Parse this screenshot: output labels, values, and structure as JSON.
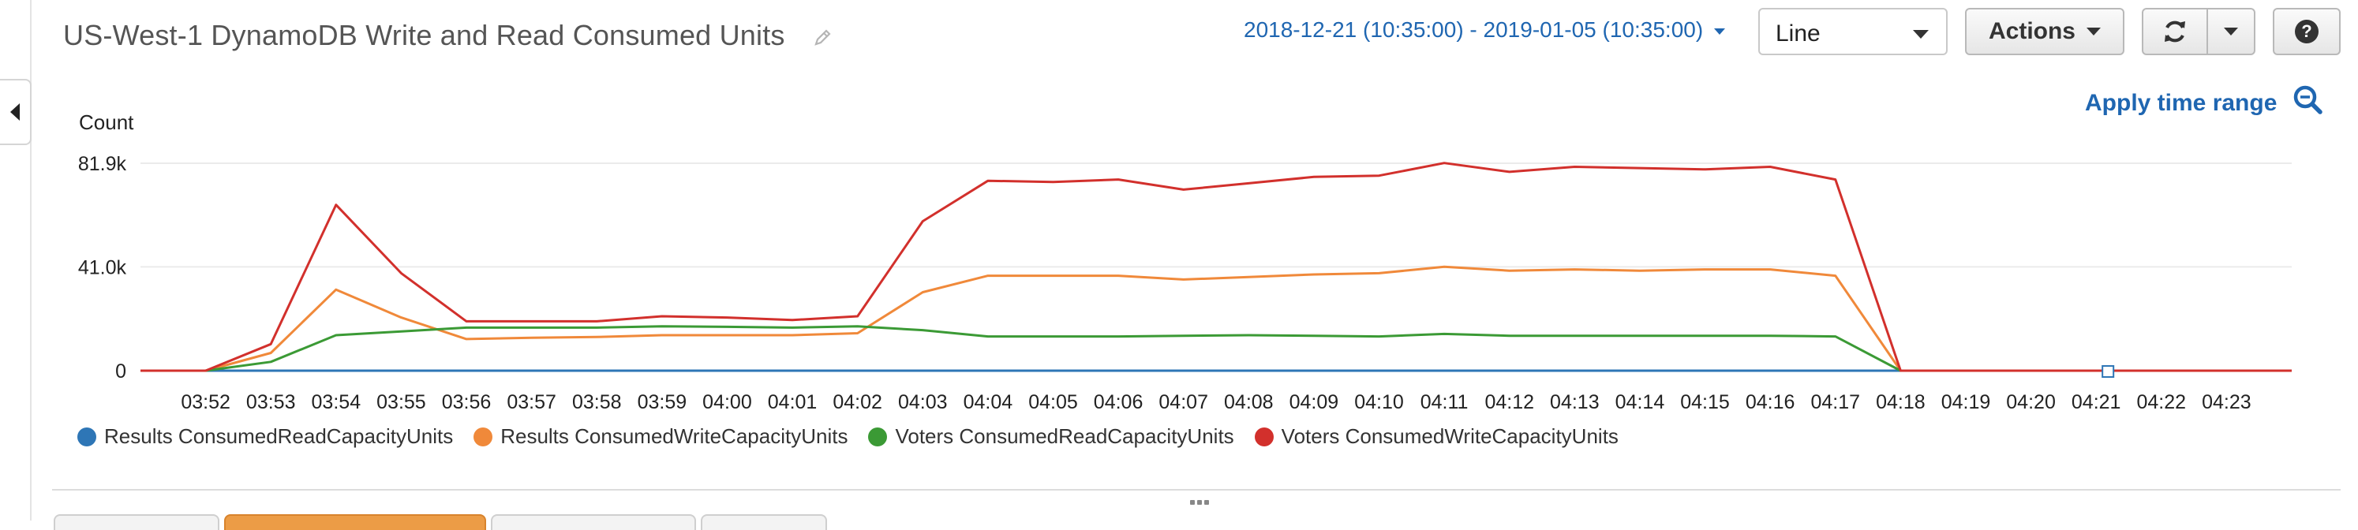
{
  "header": {
    "title": "US-West-1 DynamoDB Write and Read Consumed Units",
    "edit_icon": "pencil-icon",
    "time_range": "2018-12-21 (10:35:00) - 2019-01-05 (10:35:00)",
    "chart_type_select": "Line",
    "actions_label": "Actions",
    "refresh_icon": "refresh-icon",
    "help_label": "?"
  },
  "toolbar": {
    "apply_time_range": "Apply time range",
    "zoom_icon": "zoom-out-icon"
  },
  "sidebar": {
    "toggle_icon": "chevron-left-icon"
  },
  "chart_data": {
    "type": "line",
    "ylabel": "Count",
    "ylim": [
      0,
      81900
    ],
    "y_ticks": [
      {
        "value": 81900,
        "label": "81.9k"
      },
      {
        "value": 41000,
        "label": "41.0k"
      },
      {
        "value": 0,
        "label": "0"
      }
    ],
    "grid": true,
    "legend_position": "bottom",
    "x_ticks": [
      "03:52",
      "03:53",
      "03:54",
      "03:55",
      "03:56",
      "03:57",
      "03:58",
      "03:59",
      "04:00",
      "04:01",
      "04:02",
      "04:03",
      "04:04",
      "04:05",
      "04:06",
      "04:07",
      "04:08",
      "04:09",
      "04:10",
      "04:11",
      "04:12",
      "04:13",
      "04:14",
      "04:15",
      "04:16",
      "04:17",
      "04:18",
      "04:19",
      "04:20",
      "04:21",
      "04:22",
      "04:23"
    ],
    "x": [
      "03:51",
      "03:52",
      "03:53",
      "03:54",
      "03:55",
      "03:56",
      "03:57",
      "03:58",
      "03:59",
      "04:00",
      "04:01",
      "04:02",
      "04:03",
      "04:04",
      "04:05",
      "04:06",
      "04:07",
      "04:08",
      "04:09",
      "04:10",
      "04:11",
      "04:12",
      "04:13",
      "04:14",
      "04:15",
      "04:16",
      "04:17",
      "04:18",
      "04:19",
      "04:20",
      "04:21",
      "04:22",
      "04:23",
      "04:24"
    ],
    "series": [
      {
        "name": "Results ConsumedReadCapacityUnits",
        "color": "#2e76b6",
        "values": [
          0,
          0,
          0,
          0,
          0,
          0,
          0,
          0,
          0,
          0,
          0,
          0,
          0,
          0,
          0,
          0,
          0,
          0,
          0,
          0,
          0,
          0,
          0,
          0,
          0,
          0,
          0,
          0,
          0,
          0,
          0,
          0,
          0,
          0
        ]
      },
      {
        "name": "Results ConsumedWriteCapacityUnits",
        "color": "#f0893a",
        "values": [
          0,
          0,
          7000,
          32000,
          21000,
          12500,
          13000,
          13300,
          14000,
          14000,
          14000,
          14800,
          31000,
          37500,
          37500,
          37500,
          36000,
          37000,
          38000,
          38500,
          41000,
          39500,
          40000,
          39500,
          40000,
          40000,
          37500,
          0,
          0,
          0,
          0,
          0,
          0,
          0
        ]
      },
      {
        "name": "Voters ConsumedReadCapacityUnits",
        "color": "#3b9a35",
        "values": [
          0,
          0,
          3500,
          14000,
          15500,
          17000,
          17000,
          17000,
          17500,
          17300,
          17000,
          17500,
          16000,
          13500,
          13500,
          13500,
          13800,
          14000,
          13800,
          13500,
          14500,
          13800,
          13800,
          13800,
          13800,
          13800,
          13500,
          0,
          0,
          0,
          0,
          0,
          0,
          0
        ]
      },
      {
        "name": "Voters ConsumedWriteCapacityUnits",
        "color": "#d2302c",
        "values": [
          0,
          0,
          10500,
          65500,
          38500,
          19500,
          19500,
          19500,
          21500,
          21000,
          20000,
          21500,
          59000,
          75000,
          74500,
          75500,
          71500,
          74000,
          76500,
          77000,
          82000,
          78500,
          80500,
          80000,
          79500,
          80500,
          75500,
          0,
          0,
          0,
          0,
          0,
          0,
          0
        ]
      }
    ]
  }
}
